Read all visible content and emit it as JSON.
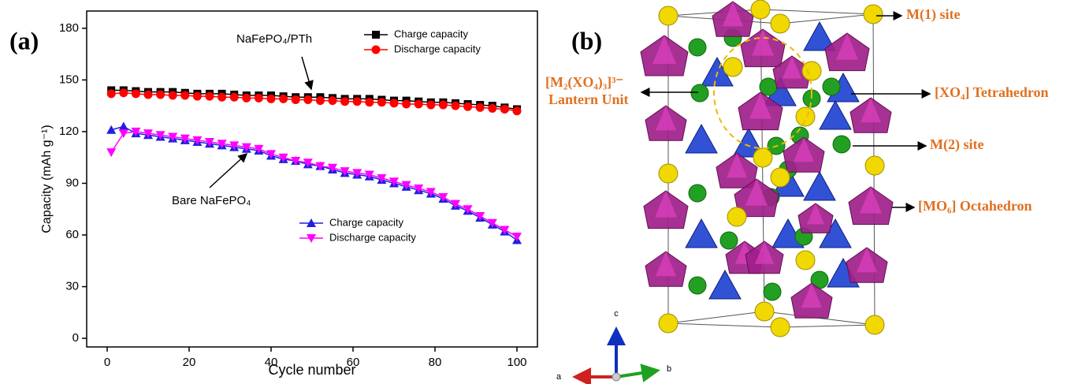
{
  "panel_a_label": "(a)",
  "chart_data": {
    "type": "line",
    "xlabel": "Cycle number",
    "ylabel": "Capacity (mAh g⁻¹)",
    "xlim": [
      -5,
      105
    ],
    "ylim": [
      -5,
      190
    ],
    "xticks": [
      0,
      20,
      40,
      60,
      80,
      100
    ],
    "yticks": [
      0,
      30,
      60,
      90,
      120,
      150,
      180
    ],
    "x": [
      1,
      4,
      7,
      10,
      13,
      16,
      19,
      22,
      25,
      28,
      31,
      34,
      37,
      40,
      43,
      46,
      49,
      52,
      55,
      58,
      61,
      64,
      67,
      70,
      73,
      76,
      79,
      82,
      85,
      88,
      91,
      94,
      97,
      100
    ],
    "series": [
      {
        "name": "Charge capacity",
        "color": "#000000",
        "marker": "square",
        "legend": "upper right",
        "values": [
          144,
          144,
          143.5,
          143,
          143,
          143,
          142.5,
          142,
          142,
          142,
          141.5,
          141,
          141,
          141,
          140.5,
          140,
          140,
          140,
          139.5,
          139,
          139,
          139,
          138.5,
          138,
          138,
          137.5,
          137,
          137,
          136.5,
          136,
          135.5,
          135,
          134,
          133
        ]
      },
      {
        "name": "Discharge capacity",
        "color": "#ff0000",
        "marker": "circle",
        "legend": "upper right",
        "values": [
          142,
          142.5,
          142,
          141.5,
          141.5,
          141,
          141,
          140.5,
          140.5,
          140,
          140,
          139.5,
          139.5,
          139,
          139,
          138.5,
          138.5,
          138,
          138,
          137.5,
          137.5,
          137,
          137,
          136.5,
          136,
          136,
          135.5,
          135.5,
          135,
          134.5,
          134,
          133.5,
          133,
          132
        ]
      },
      {
        "name": "Charge capacity",
        "color": "#1f1fe0",
        "marker": "triangle-up",
        "legend": "lower right",
        "values": [
          121,
          123,
          119,
          118,
          117,
          116,
          115,
          114,
          113,
          112,
          111,
          110,
          109,
          106,
          104,
          103,
          101,
          100,
          98,
          96,
          95,
          94,
          92,
          90,
          88,
          86,
          84,
          81,
          77,
          74,
          70,
          66,
          62,
          57
        ]
      },
      {
        "name": "Discharge capacity",
        "color": "#ff00ff",
        "marker": "triangle-down",
        "legend": "lower right",
        "values": [
          108,
          119,
          120,
          119,
          118,
          117,
          116,
          115,
          114,
          113,
          112,
          111,
          110,
          107,
          105,
          103,
          102,
          100,
          99,
          97,
          96,
          95,
          93,
          91,
          89,
          87,
          85,
          82,
          78,
          75,
          71,
          67,
          63,
          59
        ]
      }
    ],
    "annotations": [
      "NaFePO₄/PTh",
      "Bare NaFePO₄"
    ]
  },
  "panel_b": {
    "label": "(b)",
    "labels": [
      "M(1) site",
      "[M₂(XO₄)₃]³⁻",
      "Lantern Unit",
      "[XO₄] Tetrahedron",
      "M(2) site",
      "[MO₆] Octahedron"
    ],
    "axes": [
      "a",
      "b",
      "c"
    ]
  }
}
